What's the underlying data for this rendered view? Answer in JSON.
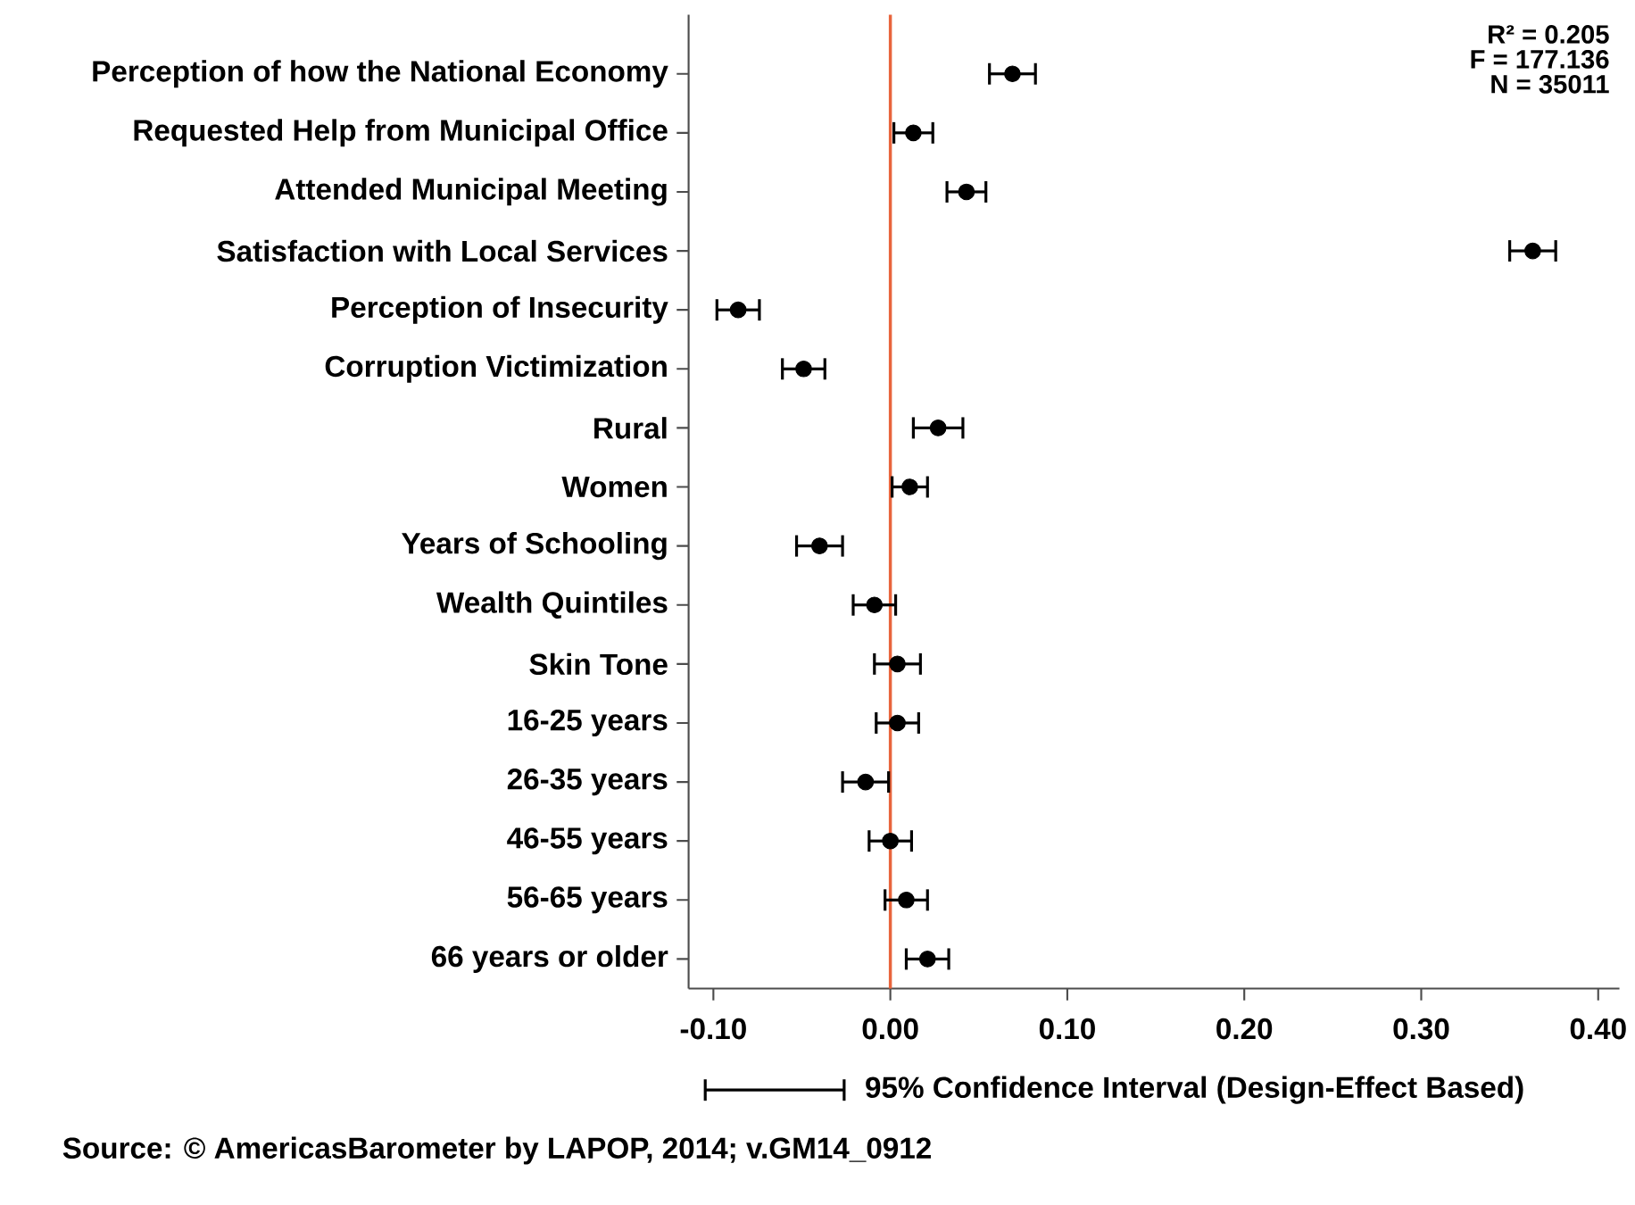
{
  "chart_data": {
    "type": "scatter",
    "orientation": "horizontal",
    "categories": [
      "Perception of how the National Economy",
      "Requested Help from Municipal Office",
      "Attended Municipal Meeting",
      "Satisfaction with Local Services",
      "Perception of Insecurity",
      "Corruption Victimization",
      "Rural",
      "Women",
      "Years of Schooling",
      "Wealth Quintiles",
      "Skin Tone",
      "16-25 years",
      "26-35 years",
      "46-55 years",
      "56-65 years",
      "66 years or older"
    ],
    "series": [
      {
        "name": "95% Confidence Interval (Design-Effect Based)",
        "color": "#000000",
        "values": [
          0.069,
          0.013,
          0.043,
          0.363,
          -0.086,
          -0.049,
          0.027,
          0.011,
          -0.04,
          -0.009,
          0.004,
          0.004,
          -0.014,
          0.0,
          0.009,
          0.021
        ],
        "errors": [
          0.013,
          0.011,
          0.011,
          0.013,
          0.012,
          0.012,
          0.014,
          0.01,
          0.013,
          0.012,
          0.013,
          0.012,
          0.013,
          0.012,
          0.012,
          0.012
        ]
      }
    ],
    "xlim": [
      -0.114,
      0.412
    ],
    "xticks": [
      {
        "value": -0.1,
        "label": "-0.10"
      },
      {
        "value": 0,
        "label": "0.00"
      },
      {
        "value": 0.1,
        "label": "0.10"
      },
      {
        "value": 0.2,
        "label": "0.20"
      },
      {
        "value": 0.3,
        "label": "0.30"
      },
      {
        "value": 0.4,
        "label": "0.40"
      }
    ],
    "ref_lines": [
      {
        "axis": "x",
        "value": 0,
        "color": "#e8643c"
      }
    ],
    "marker": "circle",
    "legend": "bottom",
    "annotations": [
      "R² = 0.205",
      "F = 177.136",
      "N = 35011",
      "Source: © AmericasBarometer by LAPOP, 2014; v.GM14_0912"
    ]
  }
}
